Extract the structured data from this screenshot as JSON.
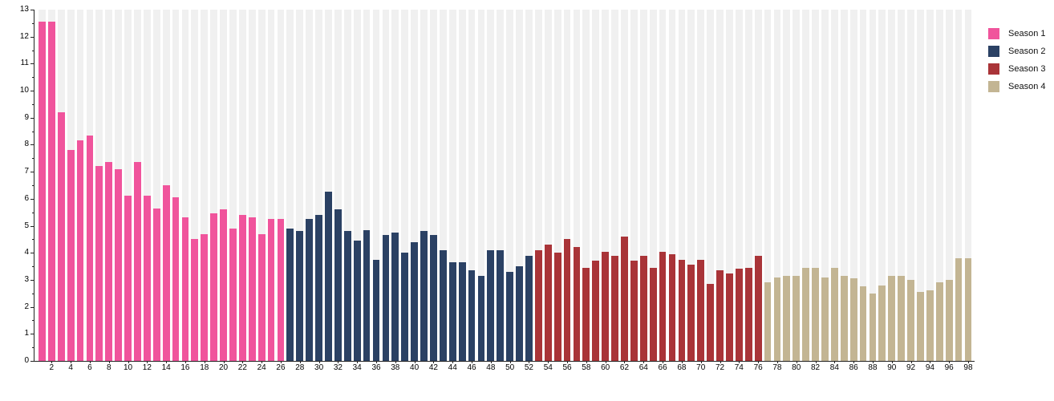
{
  "chart_data": {
    "type": "bar",
    "title": "",
    "xlabel": "",
    "ylabel": "",
    "x_unit": "episode",
    "ylim": [
      0,
      13
    ],
    "y_tick_step": 1,
    "y_minor_tick_step": 0.5,
    "y_tick_labels": [
      0,
      1,
      2,
      3,
      4,
      5,
      6,
      7,
      8,
      9,
      10,
      11,
      12,
      13
    ],
    "x_tick_labels": [
      2,
      4,
      6,
      8,
      10,
      12,
      14,
      16,
      18,
      20,
      22,
      24,
      26,
      28,
      30,
      32,
      34,
      36,
      38,
      40,
      42,
      44,
      46,
      48,
      50,
      52,
      54,
      56,
      58,
      60,
      62,
      64,
      66,
      68,
      70,
      72,
      74,
      76,
      78,
      80,
      82,
      84,
      86,
      88,
      90,
      92,
      94,
      96,
      98
    ],
    "grid": "vertical-stripes",
    "background_stripe_color": "#f0f0f0",
    "legend_position": "top-right",
    "axis_color": "#222222",
    "series": [
      {
        "name": "Season 1",
        "color": "#f0549c",
        "start_episode": 1,
        "values": [
          12.55,
          12.55,
          9.2,
          7.8,
          8.15,
          8.35,
          7.2,
          7.35,
          7.1,
          6.1,
          7.35,
          6.1,
          5.65,
          6.5,
          6.05,
          5.3,
          4.5,
          4.7,
          5.45,
          5.6,
          4.9,
          5.4,
          5.3,
          4.7,
          5.25,
          5.25
        ]
      },
      {
        "name": "Season 2",
        "color": "#2b4164",
        "start_episode": 27,
        "values": [
          4.9,
          4.8,
          5.25,
          5.4,
          6.25,
          5.6,
          4.8,
          4.45,
          4.85,
          3.75,
          4.65,
          4.75,
          4.0,
          4.4,
          4.8,
          4.65,
          4.1,
          3.65,
          3.65,
          3.35,
          3.15,
          4.1,
          4.1,
          3.3,
          3.5,
          3.9
        ]
      },
      {
        "name": "Season 3",
        "color": "#a93438",
        "start_episode": 53,
        "values": [
          4.1,
          4.3,
          4.0,
          4.5,
          4.2,
          3.45,
          3.7,
          4.05,
          3.9,
          4.6,
          3.7,
          3.9,
          3.45,
          4.05,
          3.95,
          3.75,
          3.55,
          3.75,
          2.85,
          3.35,
          3.25,
          3.4,
          3.45,
          3.9
        ]
      },
      {
        "name": "Season 4",
        "color": "#c3b593",
        "start_episode": 77,
        "values": [
          2.9,
          3.1,
          3.15,
          3.15,
          3.45,
          3.45,
          3.1,
          3.45,
          3.15,
          3.05,
          2.75,
          2.5,
          2.8,
          3.15,
          3.15,
          3.0,
          2.55,
          2.6,
          2.9,
          3.0,
          3.8,
          3.8
        ]
      }
    ]
  }
}
